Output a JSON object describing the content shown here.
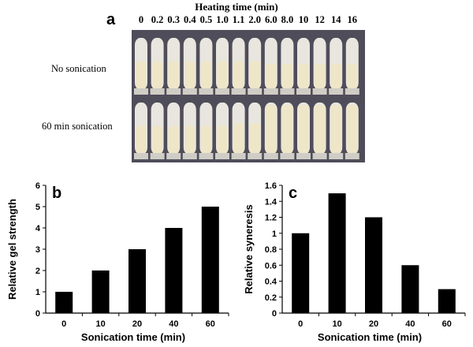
{
  "panel_a": {
    "letter": "a",
    "title": "Heating time (min)",
    "heating_times": [
      "0",
      "0.2",
      "0.3",
      "0.4",
      "0.5",
      "1.0",
      "1.1",
      "2.0",
      "6.0",
      "8.0",
      "10",
      "12",
      "14",
      "16"
    ],
    "rows": [
      {
        "label": "No sonication",
        "gel_fill": [
          0.55,
          0.55,
          0.55,
          0.55,
          0.55,
          0.55,
          0.55,
          0.55,
          0.5,
          0.5,
          0.5,
          0.5,
          0.5,
          0.5
        ]
      },
      {
        "label": "60 min sonication",
        "gel_fill": [
          0.55,
          0.55,
          0.55,
          0.55,
          0.55,
          0.55,
          0.6,
          0.6,
          0.95,
          0.95,
          0.95,
          0.95,
          0.95,
          0.95
        ]
      }
    ],
    "colors": {
      "background": "#4f4d5a",
      "tube": "#e8e6df",
      "gel": "#efe6c8"
    }
  },
  "chart_data": [
    {
      "panel": "b",
      "type": "bar",
      "categories": [
        "0",
        "10",
        "20",
        "40",
        "60"
      ],
      "values": [
        1,
        2,
        3,
        4,
        5
      ],
      "xlabel": "Sonication time (min)",
      "ylabel": "Relative gel strength",
      "ylim": [
        0,
        6
      ],
      "yticks": [
        "0",
        "1",
        "2",
        "3",
        "4",
        "5",
        "6"
      ],
      "bar_color": "#000000"
    },
    {
      "panel": "c",
      "type": "bar",
      "categories": [
        "0",
        "10",
        "20",
        "40",
        "60"
      ],
      "values": [
        1.0,
        1.5,
        1.2,
        0.6,
        0.3
      ],
      "xlabel": "Sonication time (min)",
      "ylabel": "Relative syneresis",
      "ylim": [
        0,
        1.6
      ],
      "yticks": [
        "0",
        "0.2",
        "0.4",
        "0.6",
        "0.8",
        "1",
        "1.2",
        "1.4",
        "1.6"
      ],
      "bar_color": "#000000"
    }
  ]
}
